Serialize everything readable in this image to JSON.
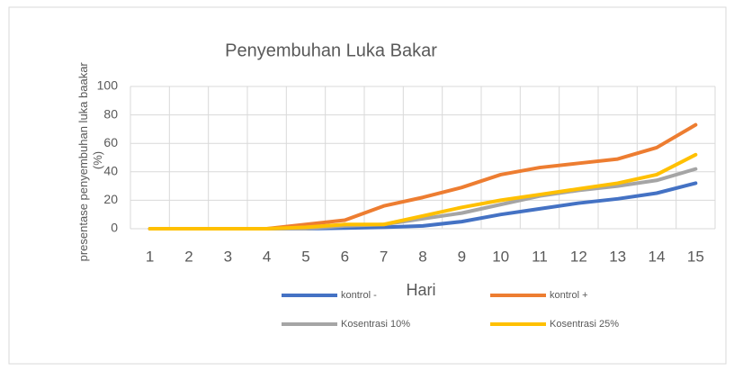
{
  "chart_data": {
    "type": "line",
    "title": "Penyembuhan Luka Bakar",
    "xlabel": "Hari",
    "ylabel": [
      "presentase penyembuhan luka baakar",
      "(%)"
    ],
    "categories": [
      "1",
      "2",
      "3",
      "4",
      "5",
      "6",
      "7",
      "8",
      "9",
      "10",
      "11",
      "12",
      "13",
      "14",
      "15"
    ],
    "series": [
      {
        "name": "kontrol -",
        "color": "#4472c4",
        "values": [
          0,
          0,
          0,
          0,
          0,
          0.5,
          1,
          2,
          5,
          10,
          14,
          18,
          21,
          25,
          32
        ]
      },
      {
        "name": "kontrol +",
        "color": "#ed7d31",
        "values": [
          0,
          0,
          0,
          0,
          3,
          6,
          16,
          22,
          29,
          38,
          43,
          46,
          49,
          57,
          73
        ]
      },
      {
        "name": "Kosentrasi 10%",
        "color": "#a5a5a5",
        "values": [
          0,
          0,
          0,
          0,
          0,
          2,
          3,
          7,
          11,
          17,
          23,
          27,
          30,
          34,
          42
        ]
      },
      {
        "name": "Kosentrasi 25%",
        "color": "#ffc000",
        "values": [
          0,
          0,
          0,
          0,
          1,
          3,
          3,
          9,
          15,
          20,
          24,
          28,
          32,
          38,
          52
        ]
      }
    ],
    "ylim": [
      0,
      100
    ],
    "yticks": [
      0,
      20,
      40,
      60,
      80,
      100
    ],
    "grid": true,
    "legend": "bottom"
  }
}
